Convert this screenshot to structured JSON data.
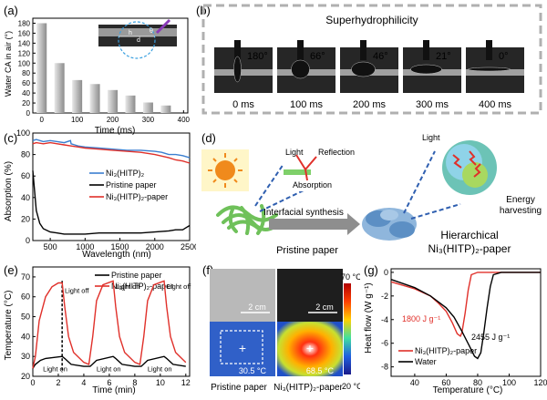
{
  "panels": {
    "a": {
      "label": "(a)",
      "ylabel": "Water CA in air (°)",
      "xlabel": "Time (ms)",
      "inset": {
        "h": "h",
        "d": "d",
        "r": "r",
        "theta": "θ"
      }
    },
    "b": {
      "label": "(b)",
      "title": "Superhydrophilicity",
      "frames": [
        {
          "angle": "180°",
          "time": "0 ms"
        },
        {
          "angle": "66°",
          "time": "100 ms"
        },
        {
          "angle": "46°",
          "time": "200 ms"
        },
        {
          "angle": "21°",
          "time": "300 ms"
        },
        {
          "angle": "0°",
          "time": "400 ms"
        }
      ]
    },
    "c": {
      "label": "(c)",
      "ylabel": "Absorption (%)",
      "xlabel": "Wavelength (nm)"
    },
    "d": {
      "label": "(d)",
      "light": "Light",
      "reflection": "Reflection",
      "absorption": "Absorption",
      "light2": "Light",
      "energy": "Energy",
      "harvesting": "harvesting",
      "interfacial": "Interfacial synthesis",
      "pristine": "Pristine paper",
      "hier1": "Hierarchical",
      "hier2": "Ni₃(HITP)₂-paper"
    },
    "e": {
      "label": "(e)",
      "ylabel": "Temperature (°C)",
      "xlabel": "Time (min)",
      "light_off": "Light off",
      "light_on": "Light on"
    },
    "f": {
      "label": "(f)",
      "scale1": "2 cm",
      "scale2": "2 cm",
      "temp1": "30.5 °C",
      "temp2": "68.5 °C",
      "cbar_max": "70 °C",
      "cbar_min": "20 °C",
      "cap1": "Pristine paper",
      "cap2": "Ni₃(HITP)₂-paper"
    },
    "g": {
      "label": "(g)",
      "ylabel": "Heat flow (W g⁻¹)",
      "xlabel": "Temperature (°C)",
      "ann1": "1800 J g⁻¹",
      "ann2": "2455 J g⁻¹"
    }
  },
  "colors": {
    "blue": "#3b7fd0",
    "red": "#e0302a",
    "black": "#000000",
    "gray": "#aaaaaa"
  },
  "chart_data": [
    {
      "id": "a",
      "type": "bar",
      "title": "",
      "xlabel": "Time (ms)",
      "ylabel": "Water CA in air (°)",
      "x": [
        0,
        50,
        100,
        150,
        200,
        250,
        300,
        350
      ],
      "values": [
        180,
        100,
        66,
        58,
        46,
        35,
        21,
        15
      ],
      "xlim": [
        -25,
        412
      ],
      "ylim": [
        0,
        190
      ],
      "xticks": [
        0,
        100,
        200,
        300,
        400
      ],
      "yticks": [
        0,
        20,
        40,
        60,
        80,
        100,
        120,
        140,
        160,
        180
      ]
    },
    {
      "id": "c",
      "type": "line",
      "xlabel": "Wavelength (nm)",
      "ylabel": "Absorption (%)",
      "xlim": [
        250,
        2500
      ],
      "ylim": [
        0,
        100
      ],
      "xticks": [
        500,
        1000,
        1500,
        2000,
        2500
      ],
      "yticks": [
        0,
        20,
        40,
        60,
        80,
        100
      ],
      "series": [
        {
          "name": "Ni₃(HITP)₂",
          "color": "#3b7fd0",
          "x": [
            250,
            300,
            400,
            500,
            600,
            700,
            790,
            800,
            850,
            900,
            1000,
            1200,
            1400,
            1600,
            1800,
            2000,
            2100,
            2200,
            2300,
            2400,
            2500
          ],
          "y": [
            93,
            94,
            92,
            93,
            92,
            91,
            93,
            90,
            89,
            88,
            87,
            86,
            85,
            84,
            84,
            83,
            82,
            80,
            80,
            79,
            77
          ]
        },
        {
          "name": "Pristine paper",
          "color": "#000000",
          "x": [
            250,
            300,
            350,
            400,
            500,
            600,
            700,
            800,
            900,
            1000,
            1200,
            1400,
            1600,
            1800,
            2000,
            2200,
            2300,
            2400,
            2450,
            2500
          ],
          "y": [
            65,
            28,
            16,
            11,
            8,
            7,
            6,
            6,
            6,
            6,
            7,
            7,
            7,
            7,
            8,
            9,
            10,
            10,
            12,
            14
          ]
        },
        {
          "name": "Ni₃(HITP)₂-paper",
          "color": "#e0302a",
          "x": [
            250,
            300,
            400,
            500,
            600,
            700,
            800,
            900,
            1000,
            1200,
            1400,
            1600,
            1800,
            2000,
            2200,
            2300,
            2400,
            2500
          ],
          "y": [
            90,
            91,
            90,
            91,
            90,
            89,
            88,
            87,
            86,
            85,
            84,
            83,
            82,
            80,
            77,
            75,
            74,
            72
          ]
        }
      ]
    },
    {
      "id": "e",
      "type": "line",
      "xlabel": "Time (min)",
      "ylabel": "Temperature (°C)",
      "xlim": [
        0,
        12.3
      ],
      "ylim": [
        20,
        75
      ],
      "xticks": [
        0,
        2,
        4,
        6,
        8,
        10,
        12
      ],
      "yticks": [
        20,
        30,
        40,
        50,
        60,
        70
      ],
      "series": [
        {
          "name": "Pristine paper",
          "color": "#000000",
          "x": [
            0,
            0.2,
            0.6,
            1.0,
            2.3,
            2.5,
            3.0,
            4.0,
            4.5,
            5.0,
            6.3,
            6.5,
            7.0,
            8.0,
            8.5,
            9.0,
            10.3,
            10.5,
            11.0,
            12.0
          ],
          "y": [
            24,
            26,
            28,
            29,
            30,
            29,
            26,
            25,
            25,
            28,
            30,
            29,
            26,
            25,
            25,
            28,
            30,
            29,
            26,
            25
          ]
        },
        {
          "name": "Ni₃(HITP)₂-paper",
          "color": "#e0302a",
          "x": [
            0,
            0.2,
            0.5,
            1.0,
            1.5,
            2.0,
            2.3,
            2.5,
            2.8,
            3.2,
            4.0,
            4.4,
            4.7,
            5.0,
            5.5,
            6.3,
            6.5,
            6.8,
            7.2,
            8.0,
            8.4,
            8.7,
            9.0,
            9.5,
            10.3,
            10.5,
            10.8,
            11.2,
            12.0
          ],
          "y": [
            24,
            30,
            48,
            60,
            65,
            67,
            67,
            55,
            40,
            32,
            27,
            26,
            40,
            58,
            66,
            68,
            55,
            40,
            32,
            27,
            26,
            40,
            58,
            66,
            68,
            55,
            40,
            32,
            27
          ]
        }
      ]
    },
    {
      "id": "g",
      "type": "line",
      "xlabel": "Temperature (°C)",
      "ylabel": "Heat flow (W g⁻¹)",
      "xlim": [
        25,
        120
      ],
      "ylim": [
        -8.8,
        0.3
      ],
      "xticks": [
        40,
        60,
        80,
        100,
        120
      ],
      "yticks": [
        -8,
        -6,
        -4,
        -2,
        0
      ],
      "series": [
        {
          "name": "Ni₃(HITP)₂-paper",
          "color": "#e0302a",
          "x": [
            25,
            40,
            50,
            55,
            60,
            64,
            67,
            69,
            70,
            72,
            74,
            76,
            80,
            90,
            120
          ],
          "y": [
            -0.8,
            -1.4,
            -2.0,
            -2.6,
            -3.3,
            -4.3,
            -5.2,
            -5.4,
            -5.1,
            -3.5,
            -1.5,
            -0.2,
            0,
            0,
            0
          ]
        },
        {
          "name": "Water",
          "color": "#000000",
          "x": [
            25,
            40,
            50,
            60,
            65,
            70,
            75,
            78,
            80,
            82,
            84,
            86,
            88,
            90,
            95,
            120
          ],
          "y": [
            -0.6,
            -1.3,
            -2.0,
            -3.0,
            -3.8,
            -5.0,
            -6.3,
            -7.1,
            -7.3,
            -6.8,
            -5.0,
            -3.0,
            -1.2,
            -0.2,
            0,
            0
          ]
        }
      ]
    }
  ]
}
